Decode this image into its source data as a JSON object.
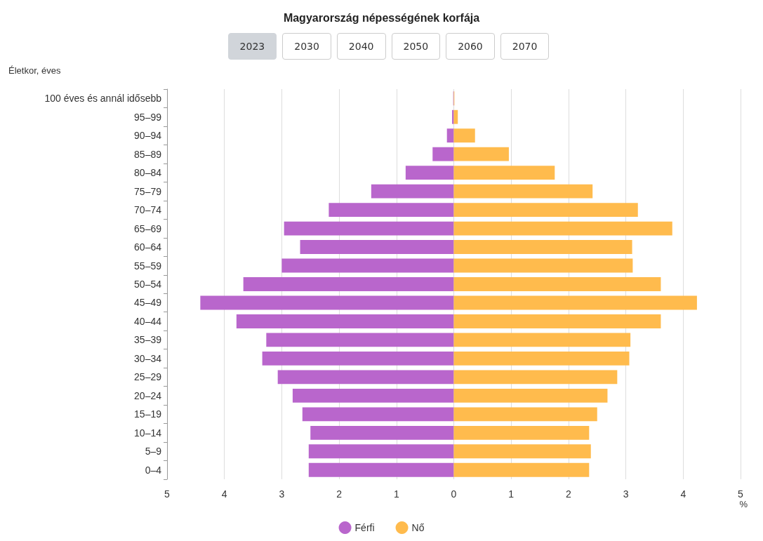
{
  "chart_data": {
    "type": "bar",
    "title": "Magyarország népességének korfája",
    "annotations": [
      "2023",
      "2030",
      "2040",
      "2050",
      "2060",
      "2070"
    ],
    "ylabel": "Életkor, éves",
    "xlabel": "%",
    "orientation": "horizontal",
    "stacked": true,
    "categories": [
      "100 éves és annál idősebb",
      "95–99",
      "90–94",
      "85–89",
      "80–84",
      "75–79",
      "70–74",
      "65–69",
      "60–64",
      "55–59",
      "50–54",
      "45–49",
      "40–44",
      "35–39",
      "30–34",
      "25–29",
      "20–24",
      "15–19",
      "10–14",
      "5–9",
      "0–4"
    ],
    "series": [
      {
        "name": "Férfi",
        "color": "#b966cc",
        "values": [
          -0.01,
          -0.03,
          -0.12,
          -0.37,
          -0.84,
          -1.44,
          -2.18,
          -2.96,
          -2.68,
          -3.0,
          -3.67,
          -4.42,
          -3.79,
          -3.27,
          -3.34,
          -3.07,
          -2.81,
          -2.64,
          -2.5,
          -2.53,
          -2.53
        ]
      },
      {
        "name": "Nő",
        "color": "#ffbb4d",
        "values": [
          0.01,
          0.07,
          0.37,
          0.96,
          1.76,
          2.42,
          3.21,
          3.81,
          3.11,
          3.12,
          3.61,
          4.24,
          3.61,
          3.08,
          3.06,
          2.85,
          2.68,
          2.5,
          2.36,
          2.39,
          2.36
        ]
      }
    ],
    "xlim": [
      -5,
      5
    ],
    "xticks": [
      {
        "value": -5,
        "label": "5"
      },
      {
        "value": -4,
        "label": "4"
      },
      {
        "value": -3,
        "label": "3"
      },
      {
        "value": -2,
        "label": "2"
      },
      {
        "value": -1,
        "label": "1"
      },
      0,
      1,
      2,
      3,
      4,
      5
    ],
    "grid": "x",
    "legend": "bottom"
  }
}
